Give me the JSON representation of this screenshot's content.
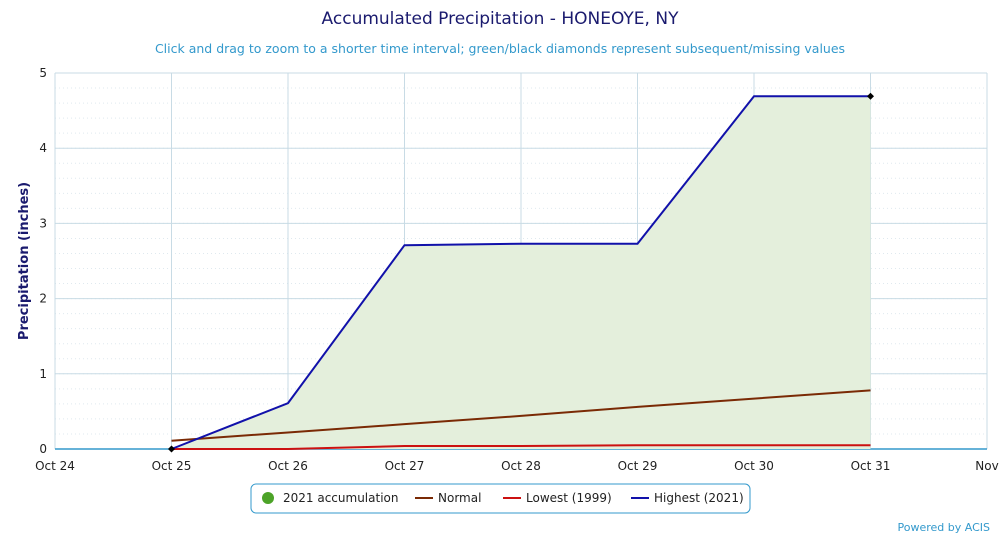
{
  "chart_data": {
    "type": "line",
    "title": "Accumulated Precipitation - HONEOYE, NY",
    "subtitle": "Click and drag to zoom to a shorter time interval; green/black diamonds represent subsequent/missing values",
    "ylabel": "Precipitation (inches)",
    "xlabel": "",
    "x_ticks": [
      "Oct 24",
      "Oct 25",
      "Oct 26",
      "Oct 27",
      "Oct 28",
      "Oct 29",
      "Oct 30",
      "Oct 31",
      "Nov"
    ],
    "y_ticks": [
      "0",
      "1",
      "2",
      "3",
      "4",
      "5"
    ],
    "ylim": [
      0,
      5
    ],
    "grid": true,
    "legend_position": "bottom-center",
    "x": [
      "Oct 25",
      "Oct 26",
      "Oct 27",
      "Oct 28",
      "Oct 29",
      "Oct 30",
      "Oct 31"
    ],
    "series": [
      {
        "name": "2021 accumulation",
        "kind": "area",
        "color": "#4ca328",
        "fill": "#e4efdc",
        "values": [
          0.0,
          0.61,
          2.71,
          2.73,
          2.73,
          4.69,
          4.69
        ]
      },
      {
        "name": "Normal",
        "kind": "line",
        "color": "#7a2a05",
        "values": [
          0.11,
          0.22,
          0.33,
          0.44,
          0.56,
          0.67,
          0.78
        ]
      },
      {
        "name": "Lowest (1999)",
        "kind": "line",
        "color": "#cc1111",
        "values": [
          0.0,
          0.0,
          0.04,
          0.04,
          0.05,
          0.05,
          0.05
        ]
      },
      {
        "name": "Highest (2021)",
        "kind": "line",
        "color": "#1111aa",
        "values": [
          0.0,
          0.61,
          2.71,
          2.73,
          2.73,
          4.69,
          4.69
        ]
      }
    ],
    "markers": [
      {
        "x": "Oct 25",
        "y": 0.0,
        "shape": "diamond",
        "color": "#000000"
      },
      {
        "x": "Oct 31",
        "y": 4.69,
        "shape": "diamond",
        "color": "#000000"
      }
    ],
    "credit": "Powered by ACIS"
  }
}
